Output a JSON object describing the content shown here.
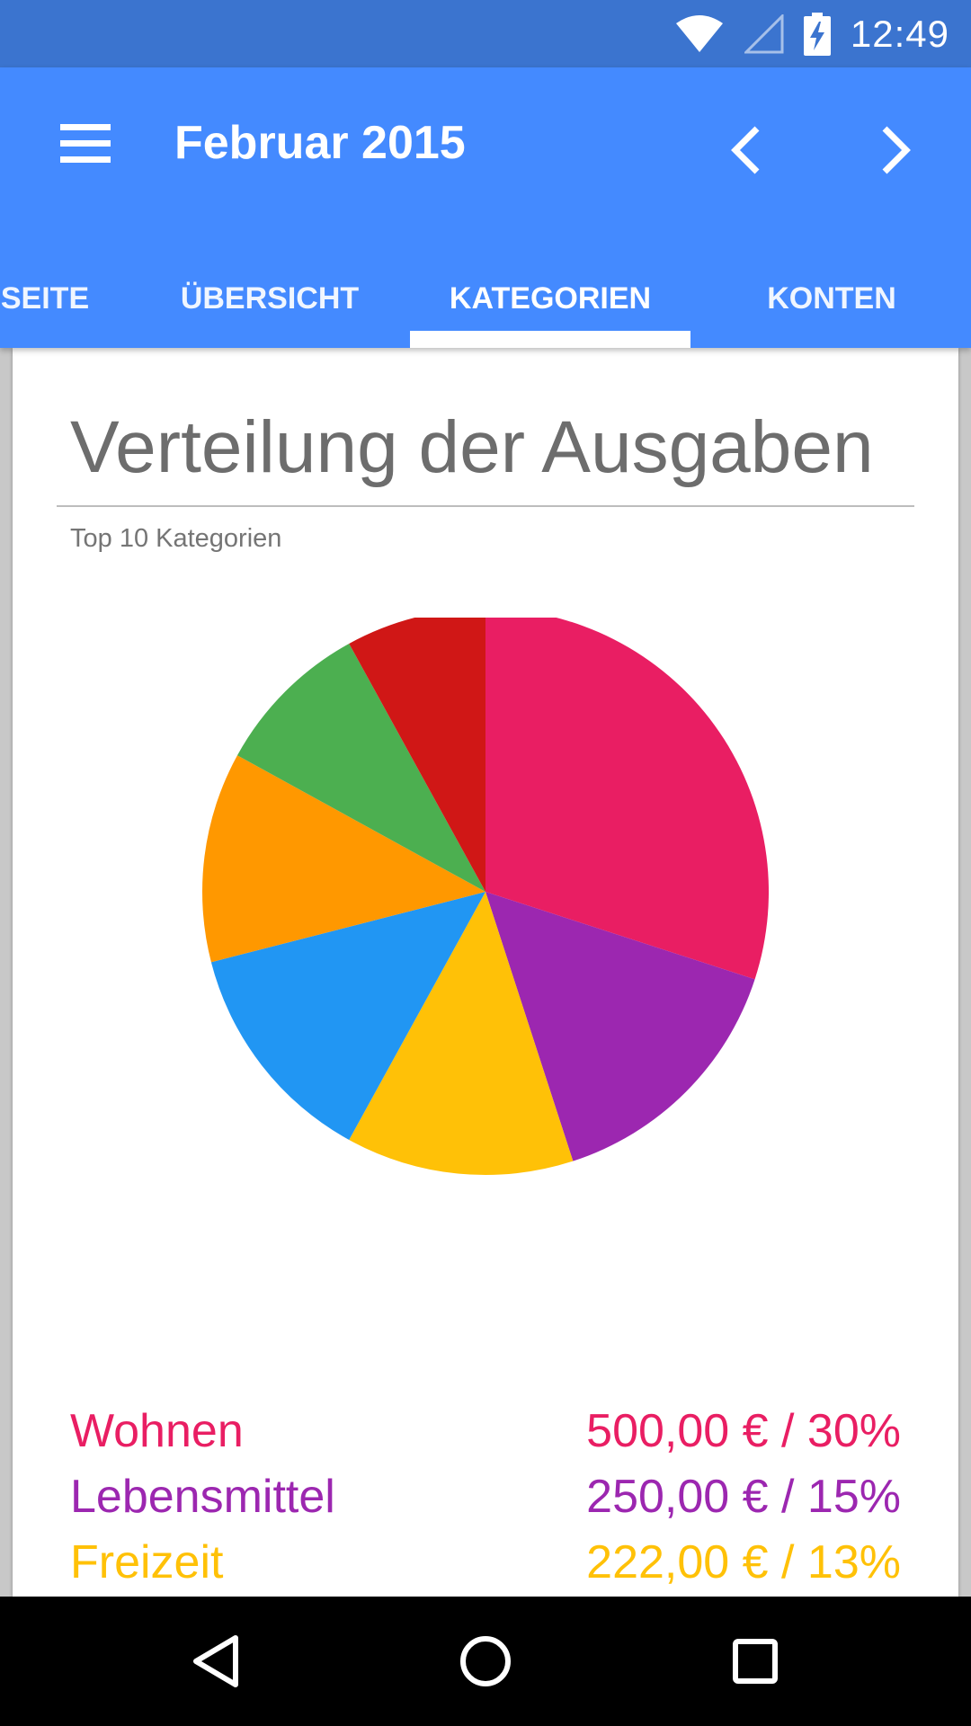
{
  "status_bar": {
    "time": "12:49",
    "icons": [
      "wifi-icon",
      "signal-icon",
      "battery-charging-icon"
    ]
  },
  "app_bar": {
    "title": "Februar 2015",
    "menu_icon": "menu-icon",
    "prev_icon": "chevron-left-icon",
    "next_icon": "chevron-right-icon",
    "color": "#448aff"
  },
  "tabs": [
    {
      "label": "SEITE",
      "selected": false
    },
    {
      "label": "ÜBERSICHT",
      "selected": false
    },
    {
      "label": "KATEGORIEN",
      "selected": true
    },
    {
      "label": "KONTEN",
      "selected": false
    }
  ],
  "card": {
    "title": "Verteilung der Ausgaben",
    "subtitle": "Top 10 Kategorien"
  },
  "chart_data": {
    "type": "pie",
    "slices": [
      {
        "label": "Wohnen",
        "amount": "500,00 € / 30%",
        "value": 30,
        "color": "#e91e63"
      },
      {
        "label": "Lebensmittel",
        "amount": "250,00 € / 15%",
        "value": 15,
        "color": "#9c27b0"
      },
      {
        "label": "Freizeit",
        "amount": "222,00 € / 13%",
        "value": 13,
        "color": "#ffc107"
      },
      {
        "label": "",
        "value": 13,
        "color": "#2196f3"
      },
      {
        "label": "",
        "value": 12,
        "color": "#ff9800"
      },
      {
        "label": "",
        "value": 9,
        "color": "#4caf50"
      },
      {
        "label": "",
        "value": 8,
        "color": "#d01716"
      }
    ]
  },
  "nav_bar": {
    "icons": [
      "back-icon",
      "home-icon",
      "recents-icon"
    ]
  }
}
